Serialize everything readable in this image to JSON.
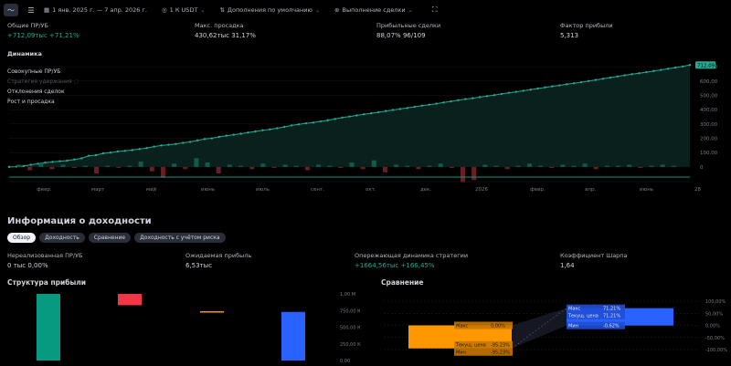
{
  "toolbar": {
    "date_range": "1 янв. 2025 г. — 7 апр. 2026 г.",
    "currency": "1 К USDT",
    "sort": "Дополнения по умолчанию",
    "executed": "Выполнение сделки"
  },
  "metrics": [
    {
      "label": "Общие ПР/УБ",
      "value": "+712,09",
      "unit": "тыс",
      "extra": "+71,21%"
    },
    {
      "label": "Макс. просадка",
      "value": "430,62",
      "unit": "тыс",
      "extra": "31,17%"
    },
    {
      "label": "Прибыльные сделки",
      "value": "88,07%",
      "unit": "",
      "extra": "96/109"
    },
    {
      "label": "Фактор прибыли",
      "value": "5,313",
      "unit": "",
      "extra": ""
    }
  ],
  "chart_section_label": "Динамика",
  "chart_legend": {
    "cumulative": "Совокупные ПР/УБ",
    "buy_hold": "Стратегия удержания",
    "trade_excursion": "Отклонения сделок",
    "runup_drawdown": "Рост и просадка"
  },
  "chart_data": {
    "type": "line",
    "x_ticks": [
      "февр.",
      "март",
      "май",
      "июнь",
      "июль",
      "сент.",
      "окт.",
      "дек.",
      "2026",
      "февр.",
      "апр.",
      "июнь",
      "28"
    ],
    "y_ticks": [
      "700,00",
      "600,00",
      "500,00",
      "400,00",
      "300,00",
      "200,00",
      "100,00",
      "0"
    ],
    "ylim": [
      -20,
      720
    ],
    "last_value_label": "712,09",
    "series": [
      {
        "values": [
          0,
          2,
          6,
          15,
          22,
          30,
          35,
          40,
          44,
          52,
          60,
          78,
          82,
          95,
          100,
          108,
          112,
          118,
          125,
          132,
          142,
          150,
          155,
          160,
          168,
          175,
          185,
          195,
          200,
          210,
          218,
          225,
          232,
          240,
          248,
          256,
          262,
          270,
          280,
          290,
          298,
          305,
          310,
          318,
          326,
          335,
          345,
          352,
          360,
          368,
          375,
          382,
          390,
          398,
          405,
          412,
          420,
          428,
          435,
          442,
          450,
          458,
          466,
          474,
          480,
          488,
          495,
          502,
          510,
          518,
          525,
          532,
          540,
          548,
          556,
          563,
          570,
          578,
          585,
          592,
          600,
          608,
          616,
          624,
          632,
          640,
          648,
          655,
          662,
          670,
          678,
          686,
          694,
          702,
          712
        ]
      }
    ],
    "bars": [
      2,
      -3,
      3,
      -2,
      2,
      -1,
      1,
      -6,
      1,
      -1,
      1,
      5,
      -4,
      -10,
      3,
      -2,
      8,
      4,
      -6,
      2,
      1,
      -2,
      3,
      -1,
      2,
      1,
      -3,
      2,
      1,
      -1,
      4,
      -2,
      6,
      -5,
      2,
      1,
      -2,
      1,
      3,
      -1,
      -14,
      -12,
      2,
      1,
      -2,
      1,
      3,
      1,
      -1,
      2,
      1,
      3,
      -2,
      1,
      1,
      2,
      -1,
      1,
      2,
      1
    ]
  },
  "income_title": "Информация о доходности",
  "tabs": [
    "Обзор",
    "Доходность",
    "Сравнение",
    "Доходность с учётом риска"
  ],
  "info": [
    {
      "label": "Нереализованная ПР/УБ",
      "value": "0 ",
      "unit": "тыс",
      "extra": "0,00%"
    },
    {
      "label": "Ожидаемая прибыль",
      "value": "6,53",
      "unit": "тыс",
      "extra": ""
    },
    {
      "label": "Опережающая динамика стратегии",
      "value": "+1664,56",
      "unit": "тыс",
      "extra": "+166,45%"
    },
    {
      "label": "Коэффициент Шарпа",
      "value": "1,64",
      "unit": "",
      "extra": ""
    }
  ],
  "structure": {
    "title": "Структура прибыли",
    "y_ticks": [
      "1,00 М",
      "750,00 К",
      "500,00 К",
      "250,00 К",
      "0,00"
    ],
    "chart_data": {
      "type": "bar",
      "ylim": [
        0,
        1000
      ],
      "bars": [
        {
          "value": 1000,
          "from": 0,
          "color": "#089981"
        },
        {
          "value": 830,
          "from": 1000,
          "color": "#f23645"
        },
        {
          "value": 730,
          "from": 740,
          "color": "#ff9800"
        },
        {
          "value": 730,
          "from": 0,
          "color": "#2962ff"
        }
      ]
    }
  },
  "comparison": {
    "title": "Сравнение",
    "y_ticks": [
      "100,00%",
      "50,00%",
      "0,00%",
      "-50,00%",
      "-100,00%"
    ],
    "left_labels": [
      {
        "name": "Макс",
        "value": "0,00%"
      },
      {
        "name": "Текущ. цена",
        "value": "-95,23%"
      },
      {
        "name": "Мин",
        "value": "-95,23%"
      }
    ],
    "right_labels": [
      {
        "name": "Макс",
        "value": "71,21%"
      },
      {
        "name": "Текущ. цена",
        "value": "71,21%"
      },
      {
        "name": "Мин",
        "value": "-0,62%"
      }
    ],
    "chart_data": {
      "type": "bar",
      "ylim": [
        -100,
        100
      ],
      "ranges": [
        {
          "name": "buy_hold",
          "min": -95.23,
          "max": 0,
          "current": -95.23,
          "color": "#ff9800"
        },
        {
          "name": "strategy",
          "min": -0.62,
          "max": 71.21,
          "current": 71.21,
          "color": "#2962ff"
        }
      ]
    }
  }
}
